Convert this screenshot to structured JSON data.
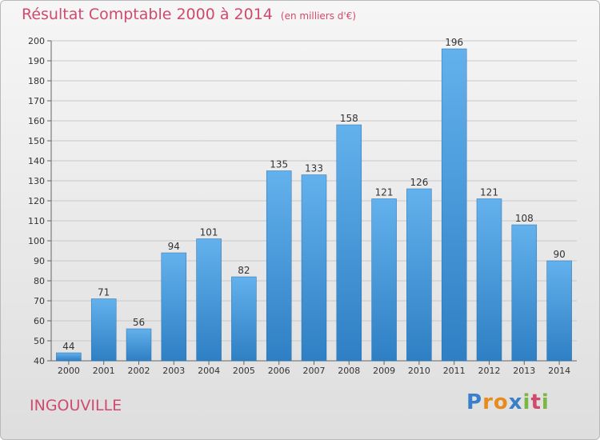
{
  "title": "Résultat Comptable 2000 à 2014",
  "unit_note": "(en milliers d'€)",
  "place": "INGOUVILLE",
  "logo_letters": [
    "P",
    "r",
    "o",
    "x",
    "i",
    "t",
    "i"
  ],
  "logo_colors": [
    "#3a7fc9",
    "#e88a1c",
    "#e88a1c",
    "#3a7fc9",
    "#7ab642",
    "#d04a6e",
    "#7ab642"
  ],
  "colors": {
    "bar_light": "#63b1ec",
    "bar_dark": "#2e7fc4",
    "text": "#d04a6e"
  },
  "chart_data": {
    "type": "bar",
    "title": "Résultat Comptable 2000 à 2014",
    "categories": [
      "2000",
      "2001",
      "2002",
      "2003",
      "2004",
      "2005",
      "2006",
      "2007",
      "2008",
      "2009",
      "2010",
      "2011",
      "2012",
      "2013",
      "2014"
    ],
    "values": [
      44,
      71,
      56,
      94,
      101,
      82,
      135,
      133,
      158,
      121,
      126,
      196,
      121,
      108,
      90
    ],
    "ylim": [
      40,
      200
    ],
    "yticks": [
      40,
      50,
      60,
      70,
      80,
      90,
      100,
      110,
      120,
      130,
      140,
      150,
      160,
      170,
      180,
      190,
      200
    ],
    "grid": true
  }
}
